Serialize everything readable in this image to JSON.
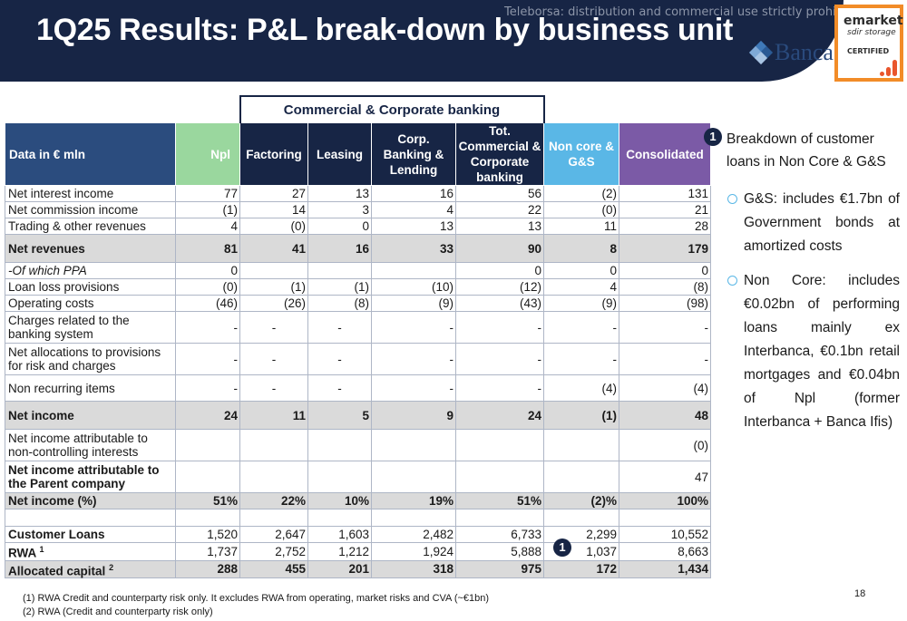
{
  "header": {
    "title": "1Q25 Results: P&L break-down by business unit",
    "watermark": "Teleborsa: distribution and commercial use strictly prohibited",
    "logo_text": "Banca",
    "badge": {
      "line1": "emarket",
      "line2": "sdir storage",
      "line3": "CERTIFIED"
    }
  },
  "table": {
    "group_header": "Commercial & Corporate banking",
    "columns": [
      "Data in € mln",
      "Npl",
      "Factoring",
      "Leasing",
      "Corp. Banking & Lending",
      "Tot. Commercial & Corporate banking",
      "Non core & G&S",
      "Consolidated"
    ],
    "rows": [
      {
        "label": "Net interest income",
        "values": [
          "77",
          "27",
          "13",
          "16",
          "56",
          "(2)",
          "131"
        ]
      },
      {
        "label": "Net commission income",
        "values": [
          "(1)",
          "14",
          "3",
          "4",
          "22",
          "(0)",
          "21"
        ]
      },
      {
        "label": "Trading & other revenues",
        "values": [
          "4",
          "(0)",
          "0",
          "13",
          "13",
          "11",
          "28"
        ]
      },
      {
        "label": "Net revenues",
        "values": [
          "81",
          "41",
          "16",
          "33",
          "90",
          "8",
          "179"
        ]
      },
      {
        "label": "-Of which PPA",
        "values": [
          "0",
          "",
          "",
          "",
          "0",
          "0",
          "0"
        ]
      },
      {
        "label": "Loan loss provisions",
        "values": [
          "(0)",
          "(1)",
          "(1)",
          "(10)",
          "(12)",
          "4",
          "(8)"
        ]
      },
      {
        "label": "Operating costs",
        "values": [
          "(46)",
          "(26)",
          "(8)",
          "(9)",
          "(43)",
          "(9)",
          "(98)"
        ]
      },
      {
        "label": "Charges related to the banking system",
        "values": [
          "-",
          "-",
          "-",
          "-",
          "-",
          "-",
          "-"
        ]
      },
      {
        "label": "Net allocations to provisions for risk and charges",
        "values": [
          "-",
          "-",
          "-",
          "-",
          "-",
          "-",
          "-"
        ]
      },
      {
        "label": "Non recurring items",
        "values": [
          "-",
          "-",
          "-",
          "-",
          "-",
          "(4)",
          "(4)"
        ]
      },
      {
        "label": "Net income",
        "values": [
          "24",
          "11",
          "5",
          "9",
          "24",
          "(1)",
          "48"
        ]
      },
      {
        "label": "Net income attributable to non-controlling interests",
        "values": [
          "",
          "",
          "",
          "",
          "",
          "",
          "(0)"
        ]
      },
      {
        "label": "Net income attributable to the Parent company",
        "values": [
          "",
          "",
          "",
          "",
          "",
          "",
          "47"
        ]
      },
      {
        "label": "Net income (%)",
        "values": [
          "51%",
          "22%",
          "10%",
          "19%",
          "51%",
          "(2)%",
          "100%"
        ]
      },
      {
        "label": "Customer Loans",
        "values": [
          "1,520",
          "2,647",
          "1,603",
          "2,482",
          "6,733",
          "2,299",
          "10,552"
        ]
      },
      {
        "label": "RWA",
        "sup": "1",
        "values": [
          "1,737",
          "2,752",
          "1,212",
          "1,924",
          "5,888",
          "1,037",
          "8,663"
        ]
      },
      {
        "label": "Allocated capital",
        "sup": "2",
        "values": [
          "288",
          "455",
          "201",
          "318",
          "975",
          "172",
          "1,434"
        ]
      }
    ]
  },
  "callout": {
    "number": "1",
    "heading": "Breakdown of customer loans in Non Core & G&S",
    "bullets": [
      "G&S: includes €1.7bn of Government bonds at amortized costs",
      "Non Core: includes €0.02bn of performing loans mainly ex Interbanca, €0.1bn retail mortgages and €0.04bn of Npl (former Interbanca + Banca Ifis)"
    ]
  },
  "footnotes": [
    "(1) RWA Credit and counterparty risk only. It excludes RWA from operating, market risks and CVA (~€1bn)",
    "(2) RWA (Credit and counterparty risk only)"
  ],
  "page_number": "18",
  "colors": {
    "navy": "#172545",
    "npl_green": "#9ad79e",
    "noncore_blue": "#5ab7e6",
    "consolidated_purple": "#7b5aa6",
    "badge_orange": "#f28c28"
  }
}
